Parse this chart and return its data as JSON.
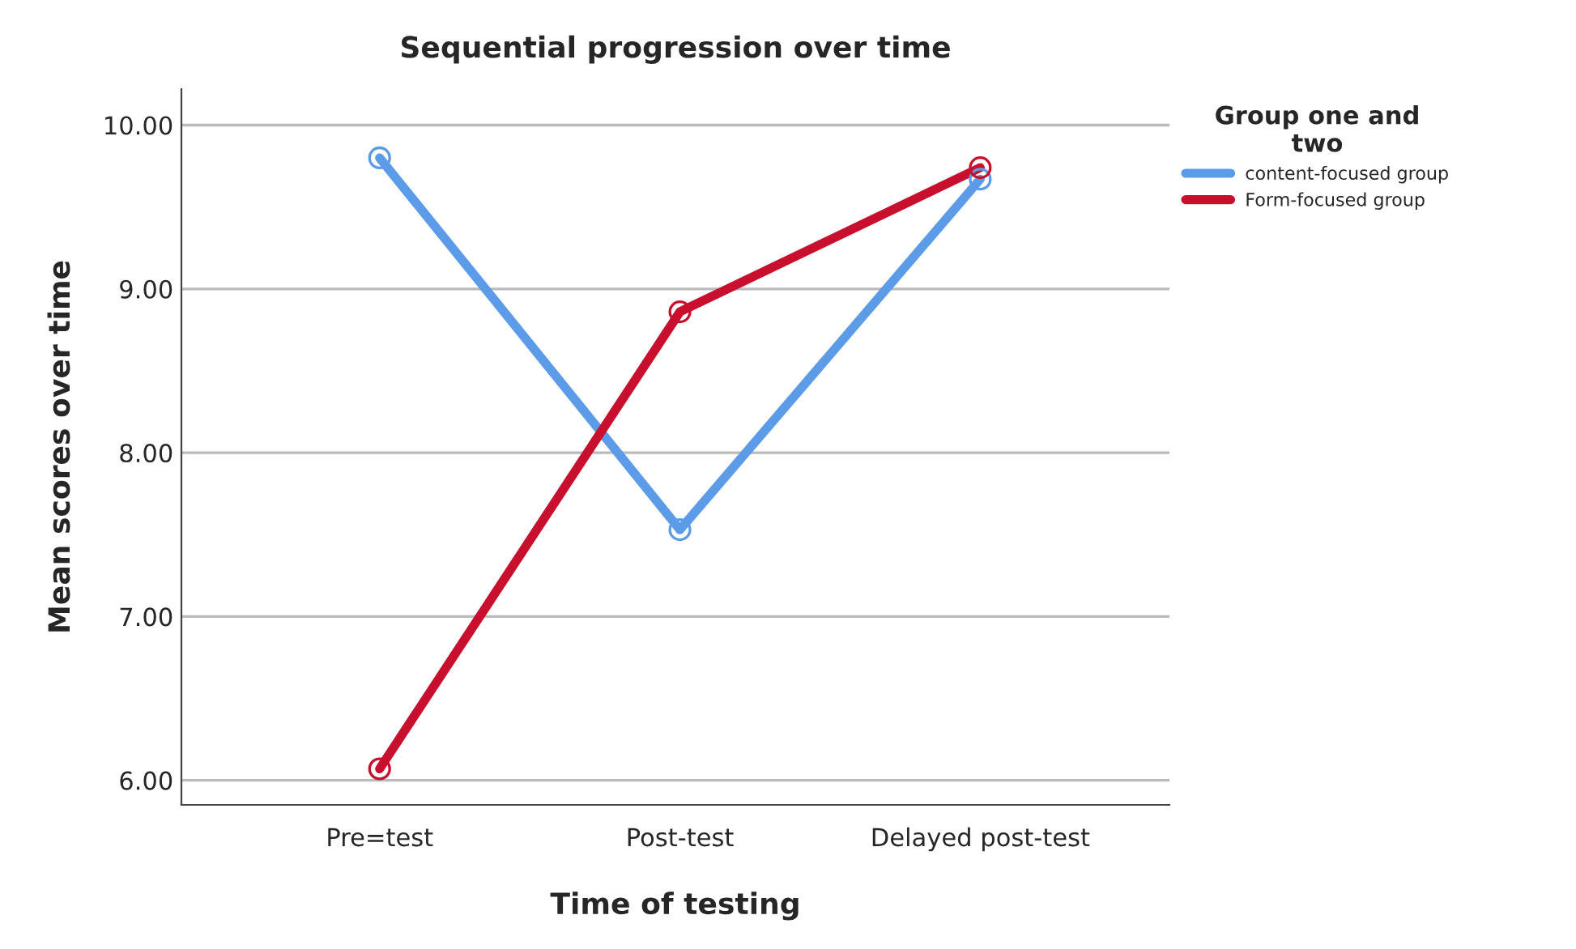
{
  "chart_data": {
    "type": "line",
    "title": "Sequential progression over time",
    "xlabel": "Time of testing",
    "ylabel": "Mean scores over time",
    "legend_title": "Group one and\ntwo",
    "categories": [
      "Pre=test",
      "Post-test",
      "Delayed post-test"
    ],
    "series": [
      {
        "name": "content-focused group",
        "color": "#5b9be8",
        "values": [
          9.8,
          7.53,
          9.67
        ]
      },
      {
        "name": "Form-focused group",
        "color": "#c8102e",
        "values": [
          6.07,
          8.86,
          9.74
        ]
      }
    ],
    "ylim": [
      5.85,
      10.22
    ],
    "yticks": [
      {
        "value": 6,
        "label": "6.00"
      },
      {
        "value": 7,
        "label": "7.00"
      },
      {
        "value": 8,
        "label": "8.00"
      },
      {
        "value": 9,
        "label": "9.00"
      },
      {
        "value": 10,
        "label": "10.00"
      }
    ],
    "grid": "y",
    "legend": "top right",
    "marker": "circle",
    "line_style": "solid"
  }
}
